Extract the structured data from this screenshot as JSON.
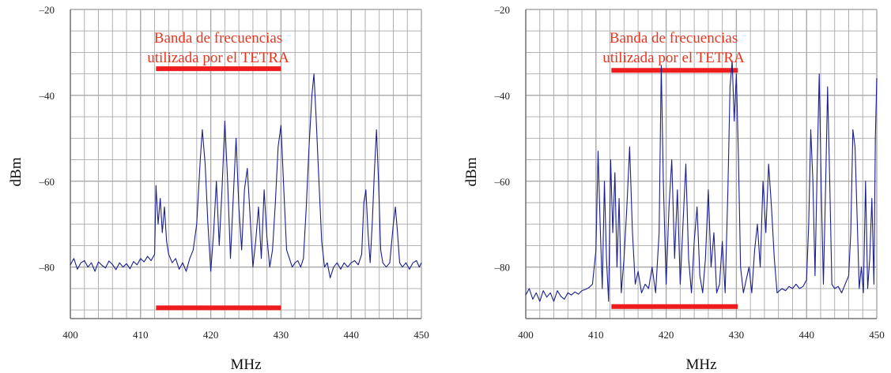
{
  "chart_data": [
    {
      "type": "line",
      "xlabel": "MHz",
      "ylabel": "dBm",
      "xlim": [
        400,
        450
      ],
      "ylim": [
        -92,
        -20
      ],
      "x_ticks": [
        "400",
        "410",
        "420",
        "430",
        "440",
        "450"
      ],
      "y_ticks": [
        "–20",
        "–40",
        "–60",
        "–80"
      ],
      "annotation": [
        "Banda de frecuencias",
        "utilizada por el TETRA"
      ],
      "band": {
        "x_start": 412.2,
        "x_end": 430,
        "y_top": -33.8,
        "y_bottom": -89.5
      },
      "grid": true,
      "colors": {
        "line": "#1a1f8c",
        "band": "#ee1c1c",
        "annotation": "#e8351e",
        "grid": "#a8a8a8"
      },
      "series": [
        {
          "points": [
            [
              400,
              -79.5
            ],
            [
              400.5,
              -78
            ],
            [
              401,
              -80.5
            ],
            [
              401.5,
              -79
            ],
            [
              402,
              -78.5
            ],
            [
              402.5,
              -80
            ],
            [
              403,
              -79
            ],
            [
              403.5,
              -81
            ],
            [
              404,
              -78.8
            ],
            [
              404.5,
              -79.6
            ],
            [
              405,
              -80.2
            ],
            [
              405.5,
              -78.6
            ],
            [
              406,
              -79.4
            ],
            [
              406.5,
              -80.6
            ],
            [
              407,
              -79
            ],
            [
              407.5,
              -80
            ],
            [
              408,
              -79.2
            ],
            [
              408.5,
              -80.4
            ],
            [
              409,
              -78.7
            ],
            [
              409.5,
              -79.5
            ],
            [
              410,
              -78
            ],
            [
              410.5,
              -78.8
            ],
            [
              411,
              -77.5
            ],
            [
              411.5,
              -78.5
            ],
            [
              412,
              -77
            ],
            [
              412.2,
              -61
            ],
            [
              412.5,
              -70
            ],
            [
              412.8,
              -64
            ],
            [
              413.1,
              -72
            ],
            [
              413.4,
              -66
            ],
            [
              413.7,
              -74
            ],
            [
              414,
              -77
            ],
            [
              414.5,
              -79
            ],
            [
              415,
              -78
            ],
            [
              415.5,
              -80.5
            ],
            [
              416,
              -79
            ],
            [
              416.5,
              -81
            ],
            [
              417,
              -78
            ],
            [
              417.5,
              -76
            ],
            [
              418,
              -70
            ],
            [
              418.5,
              -55
            ],
            [
              418.8,
              -48
            ],
            [
              419.2,
              -56
            ],
            [
              419.6,
              -70
            ],
            [
              420,
              -81
            ],
            [
              420.4,
              -72
            ],
            [
              420.8,
              -60
            ],
            [
              421.2,
              -75
            ],
            [
              421.6,
              -62
            ],
            [
              422,
              -46
            ],
            [
              422.4,
              -60
            ],
            [
              422.8,
              -78
            ],
            [
              423.2,
              -64
            ],
            [
              423.6,
              -50
            ],
            [
              424,
              -66
            ],
            [
              424.4,
              -76
            ],
            [
              424.8,
              -62
            ],
            [
              425.2,
              -57
            ],
            [
              425.6,
              -68
            ],
            [
              426,
              -80
            ],
            [
              426.4,
              -74
            ],
            [
              426.8,
              -66
            ],
            [
              427.2,
              -78
            ],
            [
              427.6,
              -62
            ],
            [
              428,
              -73
            ],
            [
              428.4,
              -80
            ],
            [
              428.8,
              -76
            ],
            [
              429.2,
              -65
            ],
            [
              429.6,
              -52
            ],
            [
              430,
              -47
            ],
            [
              430.4,
              -62
            ],
            [
              430.8,
              -76
            ],
            [
              431.2,
              -78
            ],
            [
              431.6,
              -80
            ],
            [
              432,
              -79
            ],
            [
              432.4,
              -78.5
            ],
            [
              432.8,
              -80
            ],
            [
              433.2,
              -78
            ],
            [
              433.6,
              -66
            ],
            [
              434,
              -52
            ],
            [
              434.4,
              -40
            ],
            [
              434.7,
              -35
            ],
            [
              435,
              -45
            ],
            [
              435.4,
              -60
            ],
            [
              435.8,
              -74
            ],
            [
              436.2,
              -80
            ],
            [
              436.6,
              -79
            ],
            [
              437,
              -82.5
            ],
            [
              437.5,
              -80
            ],
            [
              438,
              -79
            ],
            [
              438.5,
              -80.5
            ],
            [
              439,
              -79
            ],
            [
              439.5,
              -80
            ],
            [
              440,
              -79
            ],
            [
              440.5,
              -78.5
            ],
            [
              441,
              -79.5
            ],
            [
              441.5,
              -77
            ],
            [
              441.8,
              -65
            ],
            [
              442.1,
              -62
            ],
            [
              442.4,
              -72
            ],
            [
              442.7,
              -79
            ],
            [
              443,
              -70
            ],
            [
              443.3,
              -58
            ],
            [
              443.6,
              -48
            ],
            [
              443.9,
              -60
            ],
            [
              444.2,
              -76
            ],
            [
              444.5,
              -79
            ],
            [
              445,
              -80
            ],
            [
              445.5,
              -79
            ],
            [
              446,
              -70
            ],
            [
              446.3,
              -66
            ],
            [
              446.6,
              -72
            ],
            [
              446.9,
              -79
            ],
            [
              447.3,
              -80
            ],
            [
              447.8,
              -79
            ],
            [
              448.3,
              -80.5
            ],
            [
              448.8,
              -79
            ],
            [
              449.3,
              -78.5
            ],
            [
              449.7,
              -80
            ],
            [
              450,
              -79
            ]
          ]
        }
      ]
    },
    {
      "type": "line",
      "xlabel": "MHz",
      "ylabel": "dBm",
      "xlim": [
        400,
        450
      ],
      "ylim": [
        -92,
        -20
      ],
      "x_ticks": [
        "400",
        "410",
        "420",
        "430",
        "440",
        "450"
      ],
      "y_ticks": [
        "–20",
        "–40",
        "–60",
        "–80"
      ],
      "annotation": [
        "Banda de frecuencias",
        "utilizada por el TETRA"
      ],
      "band": {
        "x_start": 412.2,
        "x_end": 430.2,
        "y_top": -34.2,
        "y_bottom": -89.2
      },
      "grid": true,
      "colors": {
        "line": "#1a1f8c",
        "band": "#ee1c1c",
        "annotation": "#e8351e",
        "grid": "#a8a8a8"
      },
      "series": [
        {
          "points": [
            [
              400,
              -86.5
            ],
            [
              400.5,
              -85
            ],
            [
              401,
              -87.5
            ],
            [
              401.5,
              -86
            ],
            [
              402,
              -88
            ],
            [
              402.5,
              -85.5
            ],
            [
              403,
              -87
            ],
            [
              403.5,
              -86
            ],
            [
              404,
              -88
            ],
            [
              404.5,
              -85.5
            ],
            [
              405,
              -86.8
            ],
            [
              405.5,
              -87.5
            ],
            [
              406,
              -86
            ],
            [
              406.5,
              -86.5
            ],
            [
              407,
              -85.8
            ],
            [
              407.5,
              -86.3
            ],
            [
              408,
              -85.5
            ],
            [
              408.5,
              -85.2
            ],
            [
              409,
              -84.8
            ],
            [
              409.5,
              -84
            ],
            [
              410,
              -76
            ],
            [
              410.3,
              -53
            ],
            [
              410.6,
              -70
            ],
            [
              410.9,
              -85
            ],
            [
              411.2,
              -60
            ],
            [
              411.5,
              -78
            ],
            [
              411.8,
              -88
            ],
            [
              412.1,
              -55
            ],
            [
              412.4,
              -72
            ],
            [
              412.7,
              -58
            ],
            [
              413,
              -80
            ],
            [
              413.3,
              -64
            ],
            [
              413.6,
              -86
            ],
            [
              414,
              -78
            ],
            [
              414.4,
              -66
            ],
            [
              414.8,
              -52
            ],
            [
              415.2,
              -72
            ],
            [
              415.6,
              -84
            ],
            [
              416,
              -81
            ],
            [
              416.5,
              -86
            ],
            [
              417,
              -84
            ],
            [
              417.5,
              -85
            ],
            [
              418,
              -80
            ],
            [
              418.5,
              -86
            ],
            [
              419,
              -72
            ],
            [
              419.3,
              -33
            ],
            [
              419.6,
              -60
            ],
            [
              420,
              -84
            ],
            [
              420.4,
              -66
            ],
            [
              420.8,
              -55
            ],
            [
              421.2,
              -78
            ],
            [
              421.6,
              -62
            ],
            [
              422,
              -84
            ],
            [
              422.4,
              -70
            ],
            [
              422.8,
              -56
            ],
            [
              423.2,
              -78
            ],
            [
              423.6,
              -86
            ],
            [
              424,
              -74
            ],
            [
              424.4,
              -66
            ],
            [
              424.8,
              -82
            ],
            [
              425.2,
              -86
            ],
            [
              425.6,
              -78
            ],
            [
              426,
              -62
            ],
            [
              426.4,
              -80
            ],
            [
              426.8,
              -72
            ],
            [
              427.2,
              -86
            ],
            [
              427.6,
              -84
            ],
            [
              428,
              -74
            ],
            [
              428.4,
              -86
            ],
            [
              428.8,
              -62
            ],
            [
              429.1,
              -38
            ],
            [
              429.4,
              -32
            ],
            [
              429.7,
              -46
            ],
            [
              430,
              -35
            ],
            [
              430.3,
              -55
            ],
            [
              430.6,
              -80
            ],
            [
              431,
              -86
            ],
            [
              431.4,
              -83
            ],
            [
              431.8,
              -80
            ],
            [
              432.2,
              -86
            ],
            [
              432.6,
              -76
            ],
            [
              433,
              -70
            ],
            [
              433.4,
              -80
            ],
            [
              433.8,
              -60
            ],
            [
              434.2,
              -72
            ],
            [
              434.6,
              -56
            ],
            [
              435,
              -66
            ],
            [
              435.4,
              -78
            ],
            [
              435.8,
              -86
            ],
            [
              436.5,
              -85
            ],
            [
              437,
              -85.5
            ],
            [
              437.5,
              -84.5
            ],
            [
              438,
              -85
            ],
            [
              438.5,
              -84
            ],
            [
              439,
              -85
            ],
            [
              439.5,
              -84.5
            ],
            [
              440,
              -83
            ],
            [
              440.3,
              -70
            ],
            [
              440.6,
              -48
            ],
            [
              440.9,
              -60
            ],
            [
              441.2,
              -82
            ],
            [
              441.5,
              -58
            ],
            [
              441.8,
              -35
            ],
            [
              442.1,
              -62
            ],
            [
              442.4,
              -84
            ],
            [
              442.7,
              -62
            ],
            [
              443,
              -38
            ],
            [
              443.3,
              -60
            ],
            [
              443.6,
              -84
            ],
            [
              444,
              -85
            ],
            [
              444.5,
              -84.5
            ],
            [
              445,
              -86
            ],
            [
              445.5,
              -84
            ],
            [
              446,
              -82
            ],
            [
              446.3,
              -72
            ],
            [
              446.6,
              -48
            ],
            [
              446.9,
              -52
            ],
            [
              447.2,
              -68
            ],
            [
              447.5,
              -85
            ],
            [
              447.8,
              -80
            ],
            [
              448.1,
              -86
            ],
            [
              448.4,
              -60
            ],
            [
              448.7,
              -85
            ],
            [
              449,
              -78
            ],
            [
              449.3,
              -64
            ],
            [
              449.6,
              -84
            ],
            [
              449.8,
              -50
            ],
            [
              450,
              -36
            ]
          ]
        }
      ]
    }
  ]
}
